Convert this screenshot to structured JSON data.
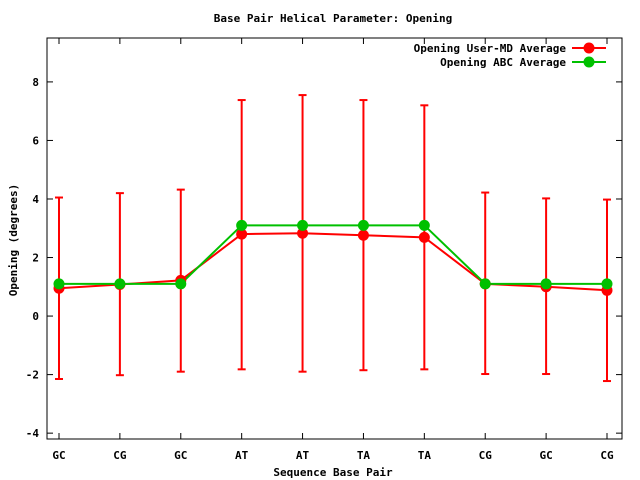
{
  "chart_data": {
    "type": "line",
    "title": "Base Pair Helical Parameter: Opening",
    "xlabel": "Sequence Base Pair",
    "ylabel": "Opening (degrees)",
    "categories": [
      "GC",
      "CG",
      "GC",
      "AT",
      "AT",
      "TA",
      "TA",
      "CG",
      "GC",
      "CG"
    ],
    "ylim": [
      -4.2,
      9.5
    ],
    "yticks": [
      -4,
      -2,
      0,
      2,
      4,
      6,
      8
    ],
    "ytick_labels": [
      "-4",
      "-2",
      "0",
      "2",
      "4",
      "6",
      "8"
    ],
    "legend_position": "top-right",
    "series": [
      {
        "name": "Opening User-MD Average",
        "color": "#ff0000",
        "values": [
          0.95,
          1.08,
          1.22,
          2.8,
          2.83,
          2.76,
          2.69,
          1.1,
          1.0,
          0.88
        ],
        "error_upper": [
          4.05,
          4.2,
          4.32,
          7.38,
          7.55,
          7.38,
          7.2,
          4.22,
          4.02,
          3.98
        ],
        "error_lower": [
          -2.15,
          -2.02,
          -1.9,
          -1.82,
          -1.9,
          -1.85,
          -1.82,
          -1.98,
          -1.98,
          -2.22
        ]
      },
      {
        "name": "Opening ABC Average",
        "color": "#00c000",
        "values": [
          1.1,
          1.1,
          1.1,
          3.1,
          3.1,
          3.1,
          3.1,
          1.1,
          1.1,
          1.1
        ]
      }
    ]
  }
}
